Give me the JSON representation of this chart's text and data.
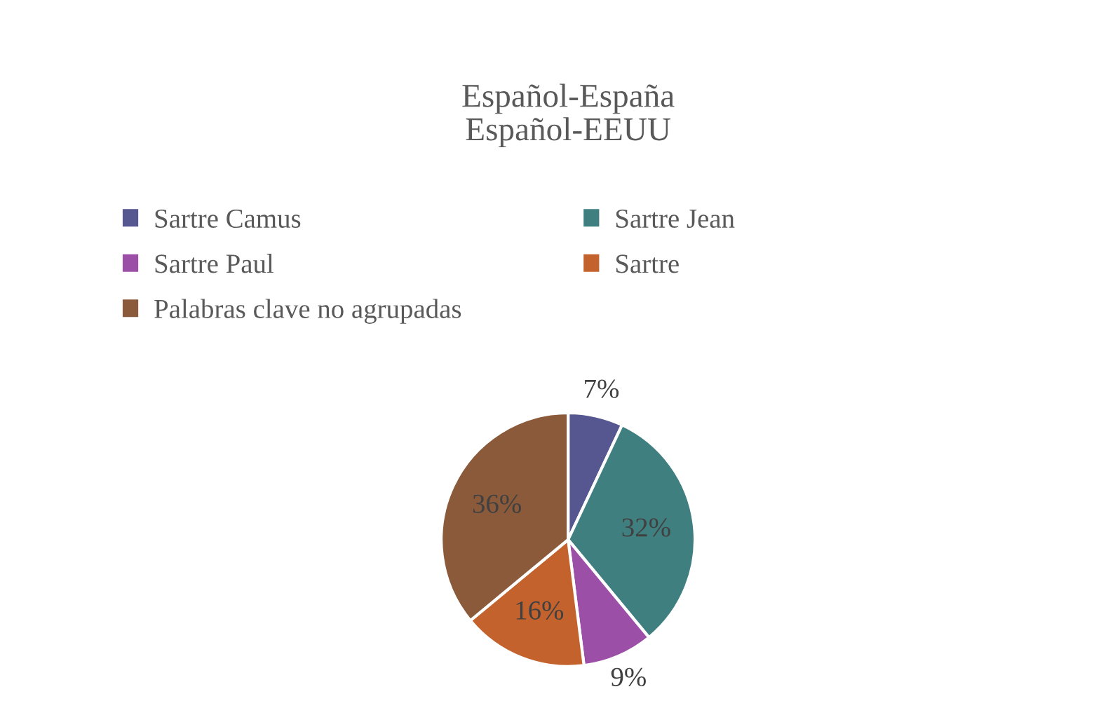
{
  "chart_data": {
    "type": "pie",
    "title": "Español-España\nEspañol-EEUU",
    "categories": [
      "Sartre Camus",
      "Sartre Jean",
      "Sartre Paul",
      "Sartre",
      "Palabras clave no agrupadas"
    ],
    "values": [
      7,
      32,
      9,
      16,
      36
    ],
    "colors": [
      "#565690",
      "#3f7f80",
      "#9c4fa6",
      "#c4622d",
      "#8a5a3a"
    ],
    "value_labels": [
      "7%",
      "32%",
      "9%",
      "16%",
      "36%"
    ],
    "legend": "top"
  }
}
